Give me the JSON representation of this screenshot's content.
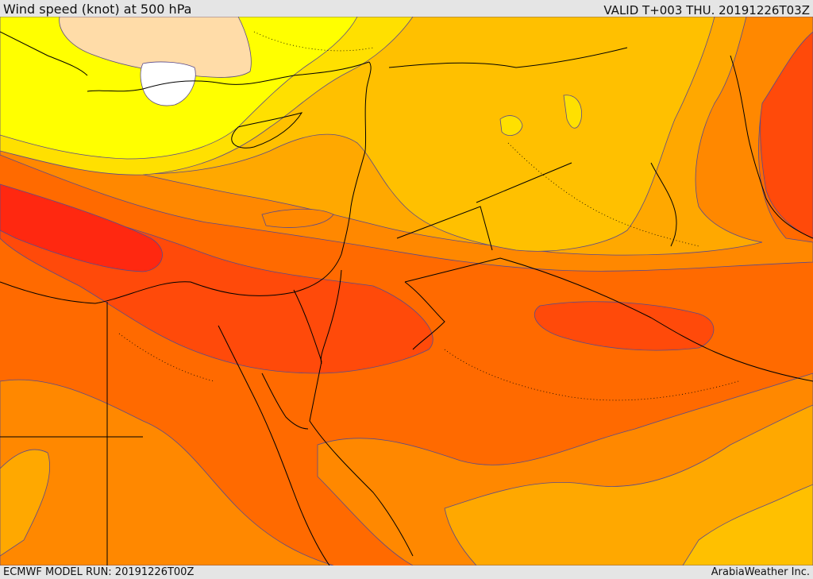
{
  "header": {
    "title": "Wind speed (knot) at 500 hPa",
    "valid_time": "VALID T+003 THU. 20191226T03Z"
  },
  "footer": {
    "model_run": "ECMWF MODEL RUN: 20191226T00Z",
    "credit": "ArabiaWeather Inc."
  },
  "map": {
    "field": "wind-speed-500hPa",
    "palette": {
      "lightest": "#ffdca8",
      "pale_yellow": "#ffff00",
      "yellow": "#ffe000",
      "gold": "#ffc000",
      "amber": "#ffa800",
      "orange": "#ff8800",
      "dark_orange": "#ff6a00",
      "red_orange": "#ff4a0a",
      "red": "#ff2810",
      "calm": "#ffffff",
      "contour": "#5a4a8a",
      "boundary": "#000000"
    }
  }
}
